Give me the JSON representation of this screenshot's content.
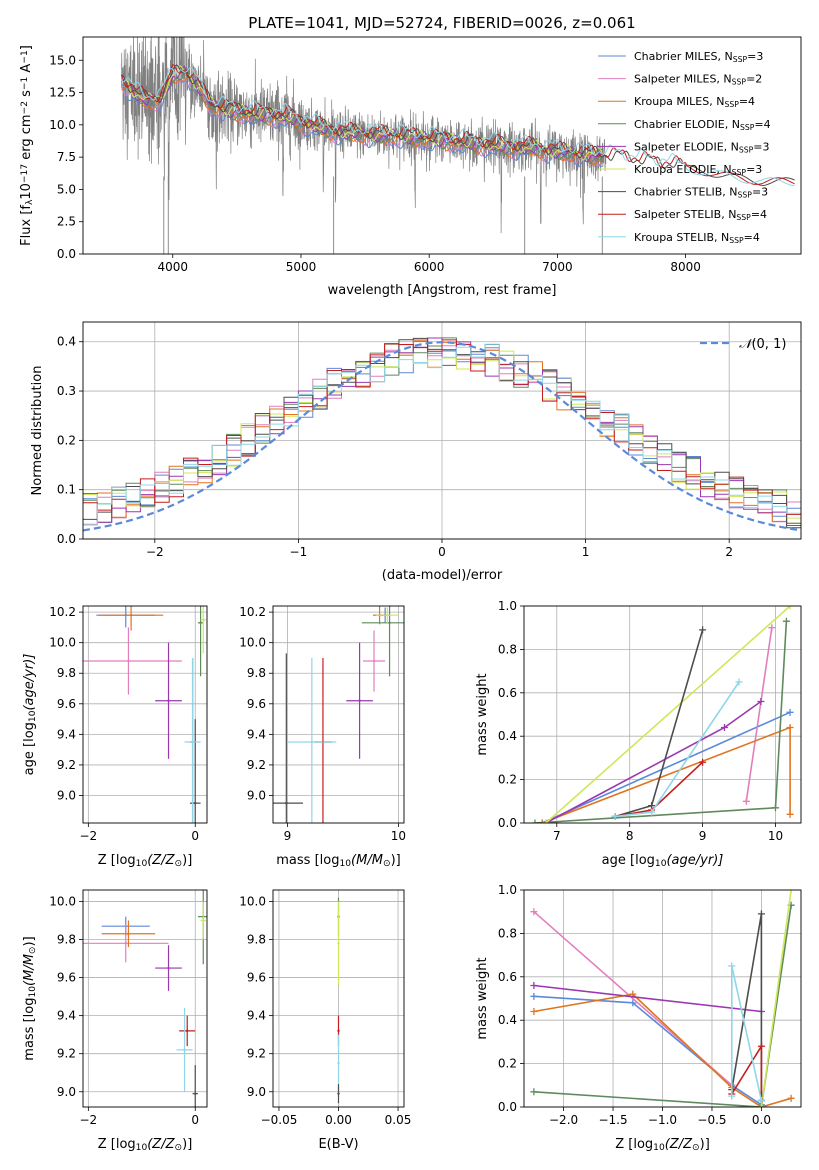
{
  "colors": {
    "Chabrier MILES": "#5b8ad9",
    "Salpeter MILES": "#e17fbd",
    "Kroupa MILES": "#e0741f",
    "Chabrier ELODIE": "#5e8a5e",
    "Salpeter ELODIE": "#9a38b0",
    "Kroupa ELODIE": "#cde85a",
    "Chabrier STELIB": "#4d4d4d",
    "Salpeter STELIB": "#c41e1e",
    "Kroupa STELIB": "#8fd6e8",
    "data": "#808080"
  },
  "chart_data": [
    {
      "id": "spectrum",
      "type": "line",
      "title": "PLATE=1041, MJD=52724, FIBERID=0026, z=0.061",
      "xlabel": "wavelength [Angstrom, rest frame]",
      "ylabel_parts": [
        "Flux [f",
        "λ",
        "10",
        "−17",
        " erg cm",
        "−2",
        " s",
        "−1",
        " A",
        "−1",
        "]"
      ],
      "xlim": [
        3300,
        8900
      ],
      "ylim": [
        0,
        16.8
      ],
      "xticks": [
        4000,
        5000,
        6000,
        7000,
        8000
      ],
      "yticks": [
        "0.0",
        "2.5",
        "5.0",
        "7.5",
        "10.0",
        "12.5",
        "15.0"
      ],
      "ytick_values": [
        0,
        2.5,
        5,
        7.5,
        10,
        12.5,
        15
      ],
      "grid": false,
      "legend_position": "upper-right",
      "legend": [
        {
          "name": "Chabrier MILES",
          "nssp": "3"
        },
        {
          "name": "Salpeter MILES",
          "nssp": "2"
        },
        {
          "name": "Kroupa MILES",
          "nssp": "4"
        },
        {
          "name": "Chabrier ELODIE",
          "nssp": "4"
        },
        {
          "name": "Salpeter ELODIE",
          "nssp": "3"
        },
        {
          "name": "Kroupa ELODIE",
          "nssp": "3"
        },
        {
          "name": "Chabrier STELIB",
          "nssp": "3"
        },
        {
          "name": "Salpeter STELIB",
          "nssp": "4"
        },
        {
          "name": "Kroupa STELIB",
          "nssp": "4"
        }
      ],
      "legend_label_template": ", N",
      "legend_sub": "SSP",
      "continuum": {
        "x": [
          3600,
          3700,
          3800,
          3900,
          4000,
          4100,
          4200,
          4300,
          4400,
          4500,
          4600,
          4700,
          4800,
          4900,
          5000,
          5200,
          5400,
          5600,
          5800,
          6000,
          6200,
          6400,
          6600,
          6800,
          7000,
          7200,
          7400,
          7600,
          7800,
          8000,
          8200,
          8400,
          8600
        ],
        "y": [
          13.5,
          12.5,
          11.8,
          12.0,
          13.8,
          14.0,
          13.0,
          11.5,
          11.2,
          11.0,
          10.9,
          10.8,
          10.7,
          10.6,
          10.2,
          9.6,
          9.3,
          9.2,
          9.1,
          8.9,
          8.7,
          8.5,
          8.3,
          8.2,
          7.9,
          7.7,
          7.5,
          7.2,
          6.9,
          6.6,
          6.3,
          5.9,
          5.6
        ]
      }
    },
    {
      "id": "residuals",
      "type": "histogram",
      "xlabel": "(data-model)/error",
      "ylabel": "Normed distribution",
      "xlim": [
        -2.5,
        2.5
      ],
      "ylim": [
        0,
        0.44
      ],
      "xticks": [
        "−2",
        "−1",
        "0",
        "1",
        "2"
      ],
      "xtick_values": [
        -2,
        -1,
        0,
        1,
        2
      ],
      "yticks": [
        "0.0",
        "0.1",
        "0.2",
        "0.3",
        "0.4"
      ],
      "ytick_values": [
        0,
        0.1,
        0.2,
        0.3,
        0.4
      ],
      "grid": true,
      "legend_position": "upper-right",
      "normal_label": "𝒩(0, 1)",
      "normal_label_parts": [
        "𝒩",
        "(0, 1)"
      ],
      "bin_width": 0.1
    },
    {
      "id": "age_vs_Z",
      "type": "errorbar",
      "xlabel_parts": [
        "Z [log",
        "10",
        "(Z/Z",
        "⊙",
        ")]"
      ],
      "ylabel_parts": [
        "age  [log",
        "10",
        "(age/yr)]"
      ],
      "xlim": [
        -2.1,
        0.22
      ],
      "ylim": [
        8.82,
        10.24
      ],
      "xticks": [
        "−2",
        "0"
      ],
      "xtick_values": [
        -2,
        0
      ],
      "yticks": [
        "9.0",
        "9.2",
        "9.4",
        "9.6",
        "9.8",
        "10.0",
        "10.2"
      ],
      "ytick_values": [
        9.0,
        9.2,
        9.4,
        9.6,
        9.8,
        10.0,
        10.2
      ],
      "grid": true,
      "points": [
        {
          "model": "Chabrier MILES",
          "x": -1.3,
          "xerr": 0.55,
          "y": 10.18,
          "yerr": 0.08
        },
        {
          "model": "Salpeter MILES",
          "x": -1.25,
          "xerr": 1.0,
          "y": 9.88,
          "yerr": 0.22
        },
        {
          "model": "Kroupa MILES",
          "x": -1.2,
          "xerr": 0.6,
          "y": 10.18,
          "yerr": 0.1
        },
        {
          "model": "Chabrier ELODIE",
          "x": 0.1,
          "xerr": 0.05,
          "y": 10.13,
          "yerr": 0.35
        },
        {
          "model": "Salpeter ELODIE",
          "x": -0.5,
          "xerr": 0.25,
          "y": 9.62,
          "yerr": 0.38
        },
        {
          "model": "Kroupa ELODIE",
          "x": 0.15,
          "xerr": 0.05,
          "y": 10.15,
          "yerr": 0.22
        },
        {
          "model": "Chabrier STELIB",
          "x": 0.0,
          "xerr": 0.1,
          "y": 8.95,
          "yerr": 0.55
        },
        {
          "model": "Salpeter STELIB",
          "x": -0.05,
          "xerr": 0.05,
          "y": 9.35,
          "yerr": 0.55
        },
        {
          "model": "Kroupa STELIB",
          "x": -0.05,
          "xerr": 0.15,
          "y": 9.35,
          "yerr": 0.55
        }
      ]
    },
    {
      "id": "age_vs_mass",
      "type": "errorbar",
      "xlabel_parts": [
        "mass [log",
        "10",
        "(M/M",
        "⊙",
        ")]"
      ],
      "xlim": [
        8.87,
        10.05
      ],
      "ylim": [
        8.82,
        10.24
      ],
      "xticks": [
        "9",
        "10"
      ],
      "xtick_values": [
        9,
        10
      ],
      "yticks": [
        "9.0",
        "9.2",
        "9.4",
        "9.6",
        "9.8",
        "10.0",
        "10.2"
      ],
      "ytick_values": [
        9.0,
        9.2,
        9.4,
        9.6,
        9.8,
        10.0,
        10.2
      ],
      "grid": true,
      "points": [
        {
          "model": "Chabrier MILES",
          "x": 9.88,
          "xerr": 0.05,
          "y": 10.18,
          "yerr": 0.05
        },
        {
          "model": "Salpeter MILES",
          "x": 9.78,
          "xerr": 0.1,
          "y": 9.88,
          "yerr": 0.2
        },
        {
          "model": "Kroupa MILES",
          "x": 9.83,
          "xerr": 0.06,
          "y": 10.18,
          "yerr": 0.06
        },
        {
          "model": "Chabrier ELODIE",
          "x": 9.92,
          "xerr": 0.25,
          "y": 10.13,
          "yerr": 0.35
        },
        {
          "model": "Salpeter ELODIE",
          "x": 9.65,
          "xerr": 0.12,
          "y": 9.62,
          "yerr": 0.38
        },
        {
          "model": "Kroupa ELODIE",
          "x": 9.9,
          "xerr": 0.1,
          "y": 10.18,
          "yerr": 0.05
        },
        {
          "model": "Chabrier STELIB",
          "x": 8.99,
          "xerr": 0.15,
          "y": 8.95,
          "yerr": 0.98
        },
        {
          "model": "Salpeter STELIB",
          "x": 9.32,
          "xerr": 0.08,
          "y": 9.35,
          "yerr": 0.55
        },
        {
          "model": "Kroupa STELIB",
          "x": 9.22,
          "xerr": 0.22,
          "y": 9.35,
          "yerr": 0.55
        }
      ]
    },
    {
      "id": "mass_weight_vs_age",
      "type": "line",
      "xlabel_parts": [
        "age  [log",
        "10",
        "(age/yr)]"
      ],
      "ylabel": "mass weight",
      "xlim": [
        6.55,
        10.35
      ],
      "ylim": [
        0,
        1.0
      ],
      "xticks": [
        "7",
        "8",
        "9",
        "10"
      ],
      "xtick_values": [
        7,
        8,
        9,
        10
      ],
      "yticks": [
        "0.0",
        "0.2",
        "0.4",
        "0.6",
        "0.8",
        "1.0"
      ],
      "ytick_values": [
        0,
        0.2,
        0.4,
        0.6,
        0.8,
        1.0
      ],
      "grid": true,
      "series": [
        {
          "model": "Chabrier MILES",
          "x": [
            6.8,
            10.2
          ],
          "y": [
            0.0,
            0.51
          ]
        },
        {
          "model": "Salpeter MILES",
          "x": [
            9.6,
            9.95
          ],
          "y": [
            0.1,
            0.9
          ]
        },
        {
          "model": "Kroupa MILES",
          "x": [
            6.8,
            10.2,
            10.2
          ],
          "y": [
            0.0,
            0.44,
            0.04
          ]
        },
        {
          "model": "Chabrier ELODIE",
          "x": [
            6.7,
            10.0,
            10.15
          ],
          "y": [
            0.0,
            0.07,
            0.93
          ]
        },
        {
          "model": "Salpeter ELODIE",
          "x": [
            6.85,
            9.3,
            9.8
          ],
          "y": [
            0.0,
            0.44,
            0.56
          ]
        },
        {
          "model": "Kroupa ELODIE",
          "x": [
            6.85,
            10.2
          ],
          "y": [
            0.0,
            1.0
          ]
        },
        {
          "model": "Chabrier STELIB",
          "x": [
            7.8,
            8.3,
            9.0
          ],
          "y": [
            0.03,
            0.08,
            0.89
          ]
        },
        {
          "model": "Salpeter STELIB",
          "x": [
            7.8,
            8.3,
            9.0
          ],
          "y": [
            0.03,
            0.06,
            0.28
          ]
        },
        {
          "model": "Kroupa STELIB",
          "x": [
            7.8,
            8.3,
            9.5
          ],
          "y": [
            0.03,
            0.05,
            0.65
          ]
        }
      ]
    },
    {
      "id": "mass_vs_Z",
      "type": "errorbar",
      "xlabel_parts": [
        "Z [log",
        "10",
        "(Z/Z",
        "⊙",
        ")]"
      ],
      "ylabel_parts": [
        "mass [log",
        "10",
        "(M/M",
        "⊙",
        ")]"
      ],
      "xlim": [
        -2.1,
        0.22
      ],
      "ylim": [
        8.92,
        10.06
      ],
      "xticks": [
        "−2",
        "0"
      ],
      "xtick_values": [
        -2,
        0
      ],
      "yticks": [
        "9.0",
        "9.2",
        "9.4",
        "9.6",
        "9.8",
        "10.0"
      ],
      "ytick_values": [
        9.0,
        9.2,
        9.4,
        9.6,
        9.8,
        10.0
      ],
      "grid": true,
      "points": [
        {
          "model": "Chabrier MILES",
          "x": -1.3,
          "xerr": 0.45,
          "y": 9.87,
          "yerr": 0.05
        },
        {
          "model": "Salpeter MILES",
          "x": -1.3,
          "xerr": 0.8,
          "y": 9.78,
          "yerr": 0.1
        },
        {
          "model": "Kroupa MILES",
          "x": -1.25,
          "xerr": 0.5,
          "y": 9.83,
          "yerr": 0.07
        },
        {
          "model": "Chabrier ELODIE",
          "x": 0.15,
          "xerr": 0.1,
          "y": 9.92,
          "yerr": 0.25
        },
        {
          "model": "Salpeter ELODIE",
          "x": -0.5,
          "xerr": 0.25,
          "y": 9.65,
          "yerr": 0.12
        },
        {
          "model": "Kroupa ELODIE",
          "x": 0.15,
          "xerr": 0.05,
          "y": 9.9,
          "yerr": 0.1
        },
        {
          "model": "Chabrier STELIB",
          "x": 0.0,
          "xerr": 0.05,
          "y": 8.99,
          "yerr": 0.15
        },
        {
          "model": "Salpeter STELIB",
          "x": -0.15,
          "xerr": 0.15,
          "y": 9.32,
          "yerr": 0.08
        },
        {
          "model": "Kroupa STELIB",
          "x": -0.2,
          "xerr": 0.15,
          "y": 9.22,
          "yerr": 0.22
        }
      ]
    },
    {
      "id": "mass_vs_EBV",
      "type": "errorbar",
      "xlabel": "E(B-V)",
      "xlim": [
        -0.055,
        0.055
      ],
      "ylim": [
        8.92,
        10.06
      ],
      "xticks": [
        "−0.05",
        "0.00",
        "0.05"
      ],
      "xtick_values": [
        -0.05,
        0,
        0.05
      ],
      "yticks": [
        "9.0",
        "9.2",
        "9.4",
        "9.6",
        "9.8",
        "10.0"
      ],
      "ytick_values": [
        9.0,
        9.2,
        9.4,
        9.6,
        9.8,
        10.0
      ],
      "grid": true,
      "points": [
        {
          "model": "Chabrier ELODIE",
          "x": 0.0,
          "xerr": 0.0,
          "y": 9.92,
          "yerr": 0.1
        },
        {
          "model": "Kroupa ELODIE",
          "x": 0.0,
          "xerr": 0.0,
          "y": 9.78,
          "yerr": 0.22
        },
        {
          "model": "Salpeter STELIB",
          "x": 0.0,
          "xerr": 0.0,
          "y": 9.32,
          "yerr": 0.08
        },
        {
          "model": "Kroupa STELIB",
          "x": 0.0,
          "xerr": 0.0,
          "y": 9.15,
          "yerr": 0.15
        },
        {
          "model": "Chabrier STELIB",
          "x": 0.0,
          "xerr": 0.0,
          "y": 8.99,
          "yerr": 0.05
        }
      ]
    },
    {
      "id": "mass_weight_vs_Z",
      "type": "line",
      "xlabel_parts": [
        "Z [log",
        "10",
        "(Z/Z",
        "⊙",
        ")]"
      ],
      "ylabel": "mass weight",
      "xlim": [
        -2.4,
        0.4
      ],
      "ylim": [
        0,
        1.0
      ],
      "xticks": [
        "−2.0",
        "−1.5",
        "−1.0",
        "−0.5",
        "0.0"
      ],
      "xtick_values": [
        -2.0,
        -1.5,
        -1.0,
        -0.5,
        0.0
      ],
      "yticks": [
        "0.0",
        "0.2",
        "0.4",
        "0.6",
        "0.8",
        "1.0"
      ],
      "ytick_values": [
        0,
        0.2,
        0.4,
        0.6,
        0.8,
        1.0
      ],
      "grid": true,
      "series": [
        {
          "model": "Chabrier MILES",
          "x": [
            -2.3,
            -1.3,
            -0.3,
            0.0
          ],
          "y": [
            0.51,
            0.48,
            0.1,
            0.01
          ]
        },
        {
          "model": "Salpeter MILES",
          "x": [
            -2.3,
            -0.3
          ],
          "y": [
            0.9,
            0.1
          ]
        },
        {
          "model": "Kroupa MILES",
          "x": [
            -2.3,
            -1.3,
            -0.3,
            0.0,
            0.3
          ],
          "y": [
            0.44,
            0.52,
            0.09,
            0.0,
            0.04
          ]
        },
        {
          "model": "Chabrier ELODIE",
          "x": [
            -2.3,
            0.0,
            0.3
          ],
          "y": [
            0.07,
            0.0,
            0.93
          ]
        },
        {
          "model": "Salpeter ELODIE",
          "x": [
            -2.3,
            0.0
          ],
          "y": [
            0.56,
            0.44
          ]
        },
        {
          "model": "Kroupa ELODIE",
          "x": [
            0.0,
            0.3
          ],
          "y": [
            0.0,
            1.0
          ]
        },
        {
          "model": "Chabrier STELIB",
          "x": [
            -0.3,
            0.0,
            0.0
          ],
          "y": [
            0.08,
            0.89,
            0.03
          ]
        },
        {
          "model": "Salpeter STELIB",
          "x": [
            -0.3,
            0.0,
            0.0
          ],
          "y": [
            0.06,
            0.28,
            0.03
          ]
        },
        {
          "model": "Kroupa STELIB",
          "x": [
            -0.3,
            -0.3,
            0.0
          ],
          "y": [
            0.05,
            0.65,
            0.03
          ]
        }
      ]
    }
  ]
}
